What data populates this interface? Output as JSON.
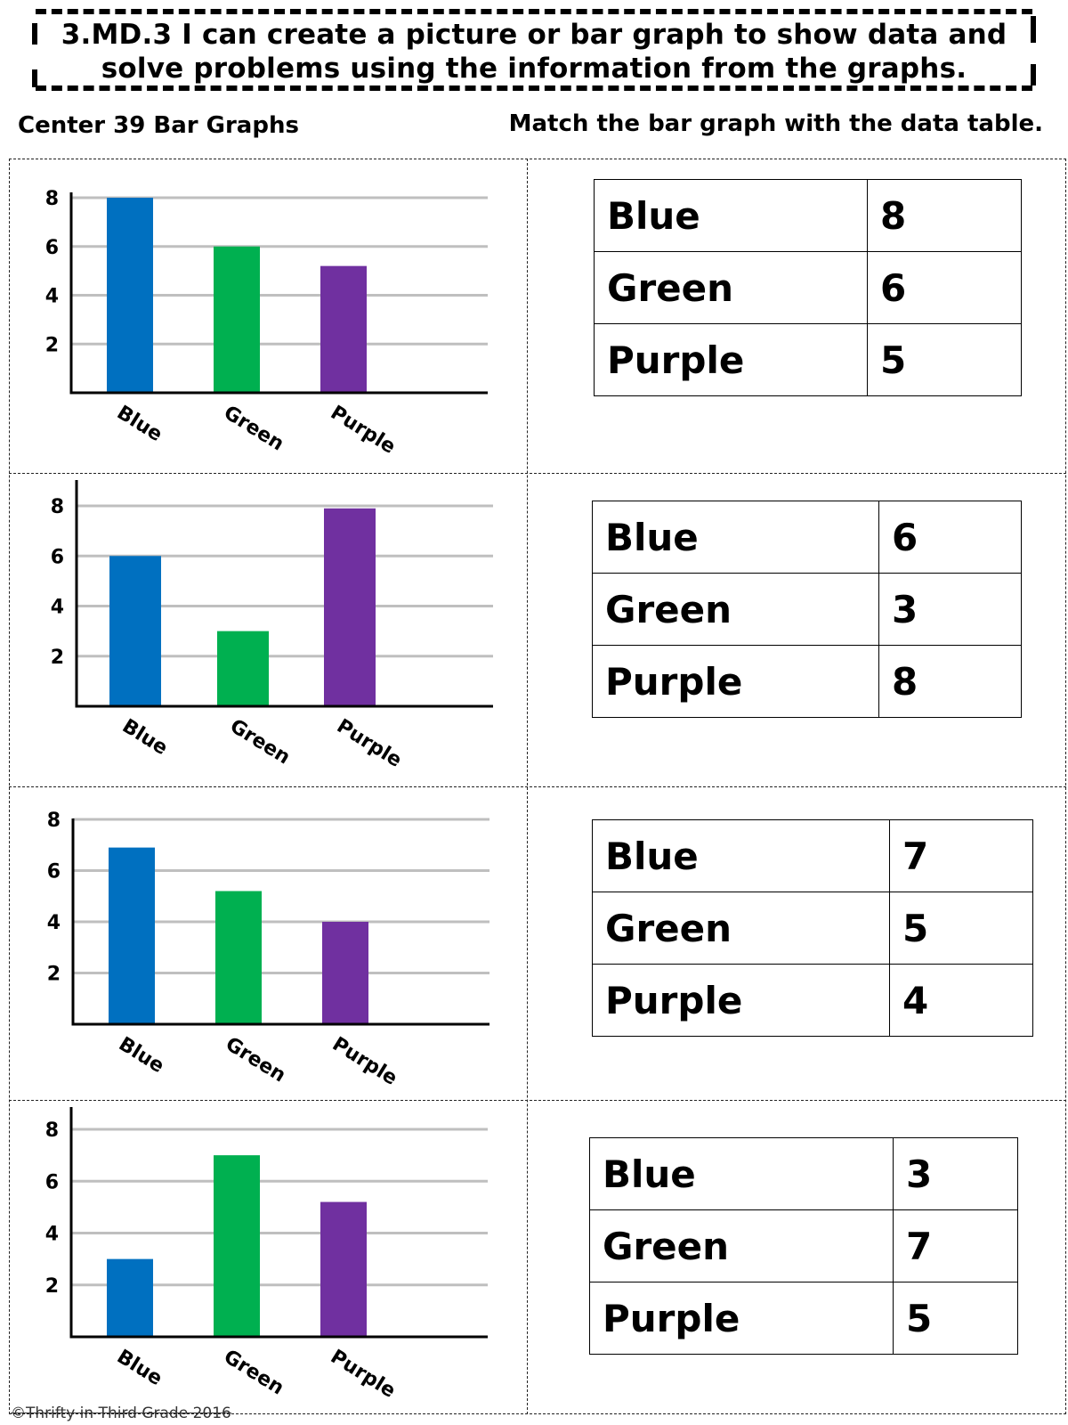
{
  "header": {
    "line1": "3.MD.3  I can create a picture or bar graph to show data and",
    "line2": "solve problems using the information from the graphs."
  },
  "subtitle_left": "Center 39 Bar Graphs",
  "subtitle_right": "Match the bar graph with the data table.",
  "footer": "©Thrifty in Third Grade 2016",
  "colors": {
    "blue": "#0070c0",
    "green": "#00b050",
    "purple": "#7030a0",
    "grid": "#bfbfbf"
  },
  "chart_data": [
    {
      "type": "bar",
      "categories": [
        "Blue",
        "Green",
        "Purple"
      ],
      "values": [
        8,
        6,
        5.2
      ],
      "yticks": [
        2,
        4,
        6,
        8
      ],
      "ylim": [
        0,
        8
      ]
    },
    {
      "type": "bar",
      "categories": [
        "Blue",
        "Green",
        "Purple"
      ],
      "values": [
        6,
        3,
        7.9
      ],
      "yticks": [
        2,
        4,
        6,
        8
      ],
      "ylim": [
        0,
        8
      ]
    },
    {
      "type": "bar",
      "categories": [
        "Blue",
        "Green",
        "Purple"
      ],
      "values": [
        6.9,
        5.2,
        4
      ],
      "yticks": [
        2,
        4,
        6,
        8
      ],
      "ylim": [
        0,
        8
      ]
    },
    {
      "type": "bar",
      "categories": [
        "Blue",
        "Green",
        "Purple"
      ],
      "values": [
        3,
        7,
        5.2
      ],
      "yticks": [
        2,
        4,
        6,
        8
      ],
      "ylim": [
        0,
        8
      ]
    }
  ],
  "tables": [
    {
      "rows": [
        {
          "label": "Blue",
          "value": "8"
        },
        {
          "label": "Green",
          "value": "6"
        },
        {
          "label": "Purple",
          "value": "5"
        }
      ]
    },
    {
      "rows": [
        {
          "label": "Blue",
          "value": "6"
        },
        {
          "label": "Green",
          "value": "3"
        },
        {
          "label": "Purple",
          "value": "8"
        }
      ]
    },
    {
      "rows": [
        {
          "label": "Blue",
          "value": "7"
        },
        {
          "label": "Green",
          "value": "5"
        },
        {
          "label": "Purple",
          "value": "4"
        }
      ]
    },
    {
      "rows": [
        {
          "label": "Blue",
          "value": "3"
        },
        {
          "label": "Green",
          "value": "7"
        },
        {
          "label": "Purple",
          "value": "5"
        }
      ]
    }
  ]
}
